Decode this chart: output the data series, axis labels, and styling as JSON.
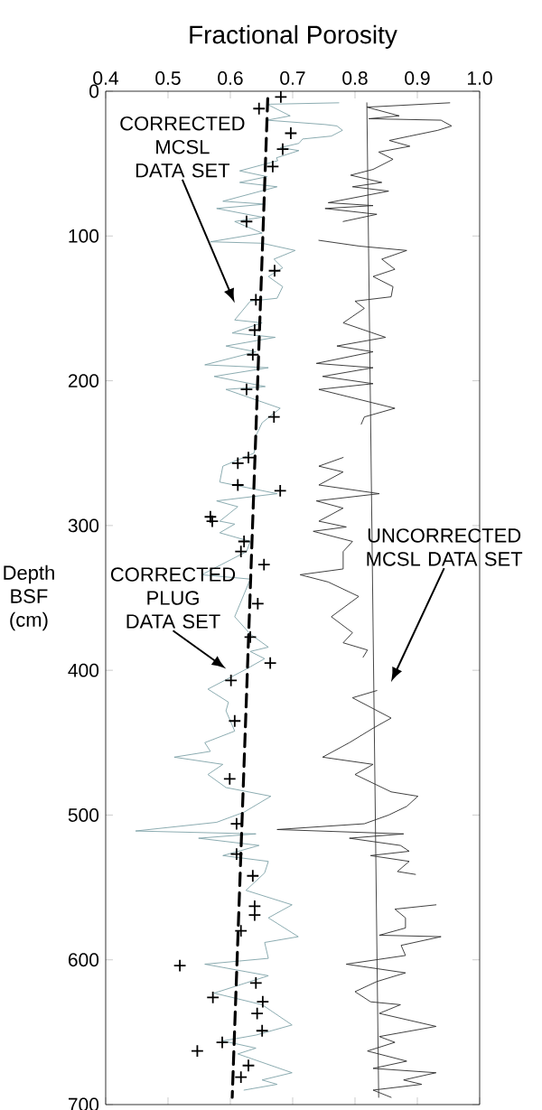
{
  "chart_data": {
    "type": "line",
    "xlabel": "Fractional Porosity",
    "ylabel": "Depth BSF (cm)",
    "xlim": [
      0.4,
      1.0
    ],
    "xticks": [
      {
        "value": 0.4,
        "label": "0.4"
      },
      {
        "value": 0.5,
        "label": "0.5"
      },
      {
        "value": 0.6,
        "label": "0.6"
      },
      {
        "value": 0.7,
        "label": "0.7"
      },
      {
        "value": 0.8,
        "label": "0.8"
      },
      {
        "value": 0.9,
        "label": "0.9"
      },
      {
        "value": 1.0,
        "label": "1.0"
      }
    ],
    "ylim": [
      700,
      0
    ],
    "yticks": [
      0,
      100,
      200,
      300,
      400,
      500,
      600,
      700
    ],
    "series": [
      {
        "color": "#7fa3a8",
        "x": [
          0.774,
          0.659,
          0.696,
          0.659,
          0.752,
          0.771,
          0.78,
          0.762,
          0.716,
          0.71,
          0.68,
          0.71,
          0.674,
          0.676,
          0.615,
          0.659,
          0.615,
          0.675,
          0.588,
          0.656,
          0.578,
          0.651,
          0.607,
          0.651,
          0.568,
          0.651,
          0.704,
          0.67,
          0.684,
          0.661,
          0.684,
          0.675,
          0.632,
          0.607,
          0.651,
          0.603,
          0.672,
          0.593,
          0.641,
          0.559,
          0.661,
          0.574,
          0.656,
          0.593,
          0.68,
          0.651,
          0.641,
          0.638,
          0.588,
          0.583,
          0.675,
          0.578,
          0.612,
          0.583,
          0.607,
          0.583,
          0.632,
          0.626,
          0.554,
          0.632,
          0.607,
          0.632,
          0.661,
          0.632,
          0.655,
          0.622,
          0.564,
          0.597,
          0.593,
          0.607,
          0.559,
          0.568,
          0.51,
          0.588,
          0.564,
          0.593,
          0.665,
          0.622,
          0.578,
          0.448,
          0.641,
          0.549,
          0.646,
          0.588,
          0.661,
          0.655,
          0.625,
          0.699,
          0.661,
          0.709,
          0.655,
          0.661,
          0.559,
          0.661,
          0.574,
          0.651,
          0.699,
          0.641,
          0.588,
          0.641,
          0.612,
          0.699,
          0.651,
          0.675,
          0.622
        ],
        "values": [
          8,
          9,
          17,
          20,
          23,
          24,
          27,
          31,
          33,
          36,
          39,
          41,
          46,
          48,
          55,
          59,
          63,
          66,
          76,
          78,
          81,
          87,
          90,
          98,
          104,
          105,
          110,
          116,
          122,
          128,
          135,
          143,
          145,
          158,
          160,
          167,
          170,
          176,
          180,
          189,
          191,
          197,
          204,
          206,
          219,
          229,
          238,
          250,
          259,
          270,
          278,
          283,
          287,
          297,
          299,
          305,
          311,
          318,
          334,
          337,
          363,
          375,
          384,
          387,
          392,
          400,
          413,
          422,
          428,
          442,
          450,
          456,
          460,
          465,
          472,
          481,
          487,
          498,
          505,
          511,
          513,
          516,
          521,
          528,
          532,
          540,
          552,
          562,
          571,
          584,
          588,
          599,
          603,
          611,
          623,
          631,
          645,
          652,
          656,
          661,
          665,
          678,
          683,
          686,
          690
        ]
      },
      {
        "color": "#2b2b2b",
        "x": [
          0.952,
          0.819,
          0.871,
          0.822,
          0.938,
          0.955,
          0.933,
          0.888,
          0.855,
          0.888,
          0.838,
          0.861,
          0.829,
          0.793,
          0.843,
          0.796,
          0.854,
          0.757,
          0.829,
          0.752,
          0.835,
          0.781,
          null,
          0.742,
          0.807,
          0.883,
          0.843,
          0.864,
          0.829,
          0.861,
          0.858,
          0.8,
          0.815,
          0.781,
          0.849,
          0.771,
          0.829,
          0.738,
          0.829,
          0.748,
          0.829,
          0.742,
          0.864,
          0.815,
          0.81,
          null,
          0.781,
          0.742,
          0.781,
          0.742,
          0.839,
          0.738,
          0.781,
          0.742,
          0.786,
          0.733,
          0.796,
          0.781,
          0.781,
          0.712,
          0.757,
          0.806,
          0.762,
          0.796,
          0.781,
          0.82,
          0.813,
          null,
          0.835,
          0.796,
          0.858,
          0.829,
          0.791,
          0.748,
          0.829,
          0.8,
          0.858,
          0.901,
          0.883,
          0.854,
          0.815,
          0.675,
          0.878,
          0.791,
          0.873,
          0.887,
          0.825,
          0.887,
          0.868,
          0.897,
          null,
          0.93,
          0.864,
          0.881,
          0.881,
          0.839,
          0.938,
          0.874,
          0.881,
          0.786,
          0.881,
          0.835,
          0.8,
          0.825,
          0.873,
          0.839,
          0.93,
          0.839,
          0.864,
          0.82,
          0.883,
          0.829,
          0.93,
          0.878,
          0.907,
          0.829,
          0.858
        ],
        "values": [
          8,
          11,
          17,
          19,
          20,
          24,
          27,
          31,
          34,
          38,
          42,
          47,
          54,
          58,
          63,
          66,
          69,
          77,
          79,
          81,
          85,
          90,
          null,
          103,
          107,
          110,
          116,
          123,
          128,
          135,
          142,
          145,
          150,
          160,
          170,
          176,
          180,
          188,
          191,
          197,
          202,
          206,
          219,
          225,
          230,
          null,
          253,
          259,
          263,
          272,
          278,
          283,
          288,
          297,
          301,
          304,
          311,
          318,
          330,
          334,
          339,
          349,
          363,
          374,
          381,
          386,
          391,
          null,
          414,
          419,
          433,
          440,
          450,
          460,
          465,
          472,
          484,
          487,
          494,
          500,
          506,
          510,
          513,
          516,
          521,
          525,
          528,
          532,
          539,
          541,
          null,
          562,
          565,
          571,
          578,
          583,
          584,
          590,
          597,
          603,
          609,
          615,
          622,
          629,
          631,
          637,
          646,
          653,
          657,
          663,
          670,
          675,
          678,
          683,
          686,
          690,
          695
        ]
      },
      {
        "color": "#000000",
        "line_style": "dashed",
        "x": [
          0.66,
          0.603
        ],
        "values": [
          5,
          695
        ]
      },
      {
        "color": "#333333",
        "x": [
          0.819,
          0.838
        ],
        "values": [
          8,
          695
        ]
      },
      {
        "type": "scatter",
        "color": "#000000",
        "marker": "cross",
        "x": [
          0.681,
          0.646,
          0.697,
          0.684,
          0.668,
          0.626,
          0.671,
          0.641,
          0.639,
          0.636,
          0.626,
          0.67,
          0.629,
          0.612,
          0.612,
          0.68,
          0.568,
          0.571,
          0.622,
          0.617,
          0.654,
          0.644,
          0.632,
          0.664,
          0.601,
          0.607,
          0.599,
          0.61,
          0.61,
          0.636,
          0.639,
          0.639,
          0.617,
          0.519,
          0.641,
          0.572,
          0.652,
          0.643,
          0.651,
          0.587,
          0.547,
          0.629,
          0.617
        ],
        "values": [
          4,
          12,
          29,
          40,
          52,
          90,
          124,
          144,
          165,
          182,
          206,
          225,
          253,
          257,
          272,
          276,
          294,
          297,
          311,
          318,
          327,
          354,
          377,
          395,
          407,
          435,
          475,
          506,
          527,
          542,
          563,
          569,
          580,
          604,
          616,
          626,
          629,
          637,
          649,
          657,
          663,
          673,
          681
        ]
      }
    ],
    "annotations": [
      "CORRECTED MCSL DATA SET",
      "UNCORRECTED MCSL DATA SET",
      "CORRECTED PLUG DATA SET"
    ]
  }
}
